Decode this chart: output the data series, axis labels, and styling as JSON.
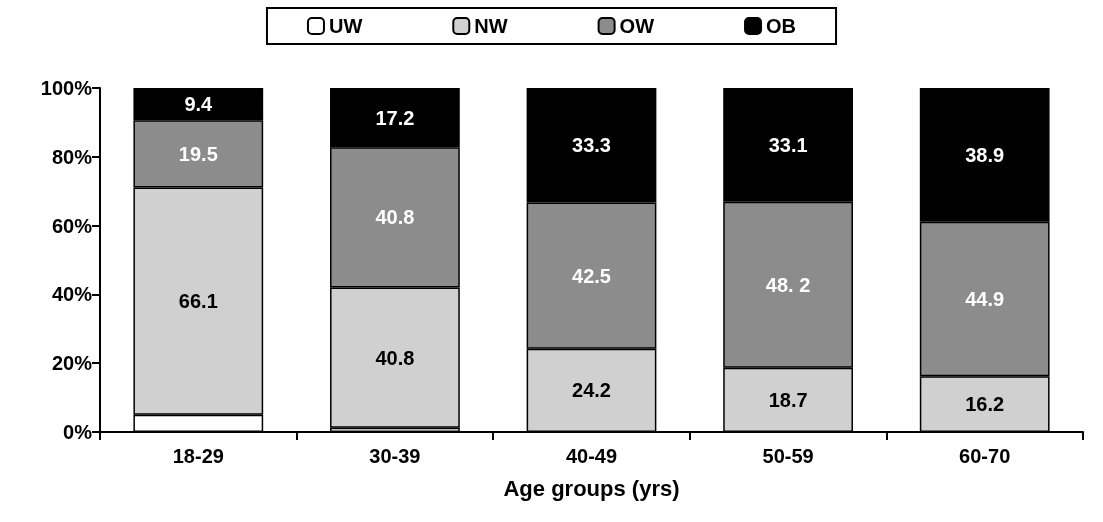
{
  "chart_data": {
    "type": "bar",
    "stacked": true,
    "xlabel": "Age groups (yrs)",
    "categories": [
      "18-29",
      "30-39",
      "40-49",
      "50-59",
      "60-70"
    ],
    "series": [
      {
        "name": "UW",
        "color": "#ffffff",
        "values": [
          5.0,
          1.2,
          0,
          0,
          0
        ],
        "value_labels": [
          null,
          null,
          null,
          null,
          null
        ]
      },
      {
        "name": "NW",
        "color": "#d0d0d0",
        "values": [
          66.1,
          40.8,
          24.2,
          18.7,
          16.2
        ],
        "value_labels": [
          "66.1",
          "40.8",
          "24.2",
          "18.7",
          "16.2"
        ]
      },
      {
        "name": "OW",
        "color": "#8c8c8c",
        "values": [
          19.5,
          40.8,
          42.5,
          48.2,
          44.9
        ],
        "value_labels": [
          "19.5",
          "40.8",
          "42.5",
          "48. 2",
          "44.9"
        ]
      },
      {
        "name": "OB",
        "color": "#000000",
        "values": [
          9.4,
          17.2,
          33.3,
          33.1,
          38.9
        ],
        "value_labels": [
          "9.4",
          "17.2",
          "33.3",
          "33.1",
          "38.9"
        ]
      }
    ],
    "ylim": [
      0,
      100
    ],
    "yticks": [
      {
        "value": 0,
        "label": "0%"
      },
      {
        "value": 20,
        "label": "20%"
      },
      {
        "value": 40,
        "label": "40%"
      },
      {
        "value": 60,
        "label": "60%"
      },
      {
        "value": 80,
        "label": "80%"
      },
      {
        "value": 100,
        "label": "100%"
      }
    ],
    "grid": false,
    "legend": "top"
  }
}
